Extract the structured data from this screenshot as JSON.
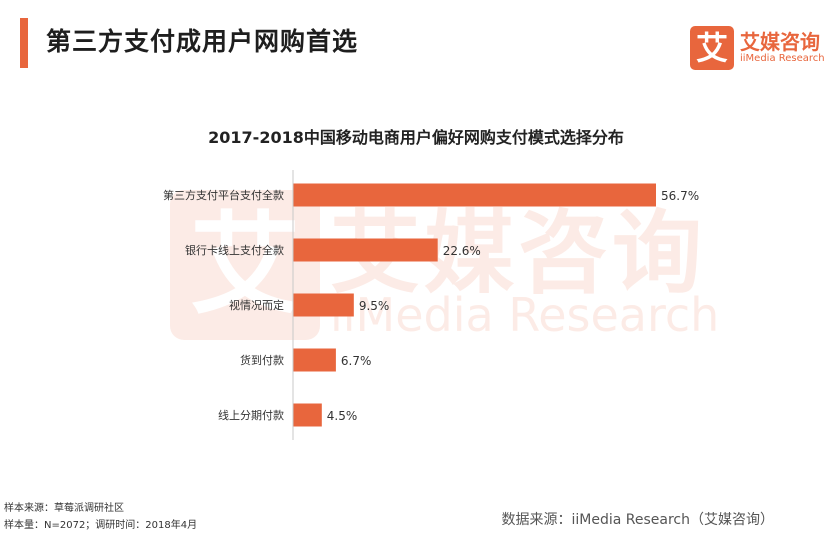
{
  "header": {
    "title": "第三方支付成用户网购首选"
  },
  "logo": {
    "badge_char": "艾",
    "name_cn": "艾媒咨询",
    "name_en": "iiMedia Research"
  },
  "watermark": {
    "badge_char": "艾",
    "text_cn": "艾媒咨询",
    "text_en": "iiMedia Research"
  },
  "chart_data": {
    "type": "bar",
    "orientation": "horizontal",
    "title": "2017-2018中国移动电商用户偏好网购支付模式选择分布",
    "categories": [
      "第三方支付平台支付全款",
      "银行卡线上支付全款",
      "视情况而定",
      "货到付款",
      "线上分期付款"
    ],
    "values": [
      56.7,
      22.6,
      9.5,
      6.7,
      4.5
    ],
    "value_labels": [
      "56.7%",
      "22.6%",
      "9.5%",
      "6.7%",
      "4.5%"
    ],
    "unit": "%",
    "xlim": [
      0,
      60
    ],
    "grid": false,
    "bar_color": "#e8663d"
  },
  "footer": {
    "sample_source": "样本来源：草莓派调研社区",
    "sample_size": "样本量：N=2072；调研时间：2018年4月",
    "data_source": "数据来源：iiMedia Research（艾媒咨询）"
  }
}
